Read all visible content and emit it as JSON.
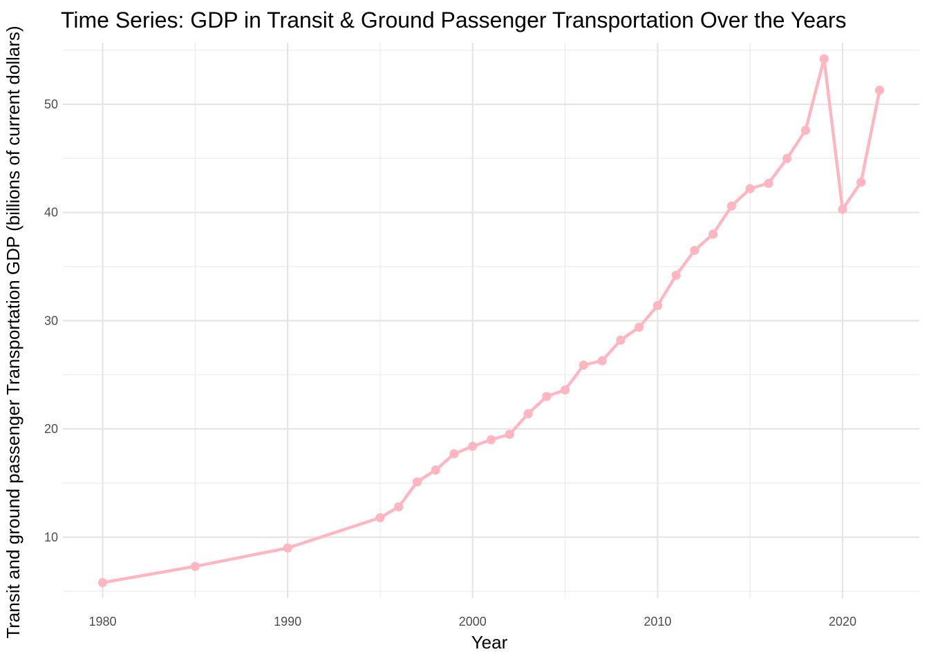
{
  "chart_data": {
    "type": "line",
    "title": "Time Series: GDP in Transit & Ground Passenger Transportation Over the Years",
    "xlabel": "Year",
    "ylabel": "Transit and ground passenger Transportation GDP (billions of current dollars)",
    "xlim": [
      1977.85,
      2024.15
    ],
    "ylim": [
      4.37,
      55.68
    ],
    "x_ticks": [
      1980,
      1990,
      2000,
      2010,
      2020
    ],
    "x_minor_ticks": [
      1985,
      1995,
      2005,
      2015
    ],
    "y_ticks": [
      10,
      20,
      30,
      40,
      50
    ],
    "y_minor_ticks": [
      5,
      15,
      25,
      35,
      45,
      55
    ],
    "grid": true,
    "legend": "none",
    "series": [
      {
        "color": "#ffb6c1",
        "x": [
          1980,
          1985,
          1990,
          1995,
          1996,
          1997,
          1998,
          1999,
          2000,
          2001,
          2002,
          2003,
          2004,
          2005,
          2006,
          2007,
          2008,
          2009,
          2010,
          2011,
          2012,
          2013,
          2014,
          2015,
          2016,
          2017,
          2018,
          2019,
          2020,
          2021,
          2022
        ],
        "y": [
          5.8,
          7.3,
          9.0,
          11.8,
          12.8,
          15.1,
          16.2,
          17.7,
          18.4,
          19.0,
          19.5,
          21.4,
          23.0,
          23.6,
          25.9,
          26.3,
          28.2,
          29.4,
          31.4,
          34.2,
          36.5,
          38.0,
          40.6,
          42.2,
          42.7,
          45.0,
          47.6,
          54.2,
          40.3,
          42.8,
          51.3
        ]
      }
    ]
  }
}
